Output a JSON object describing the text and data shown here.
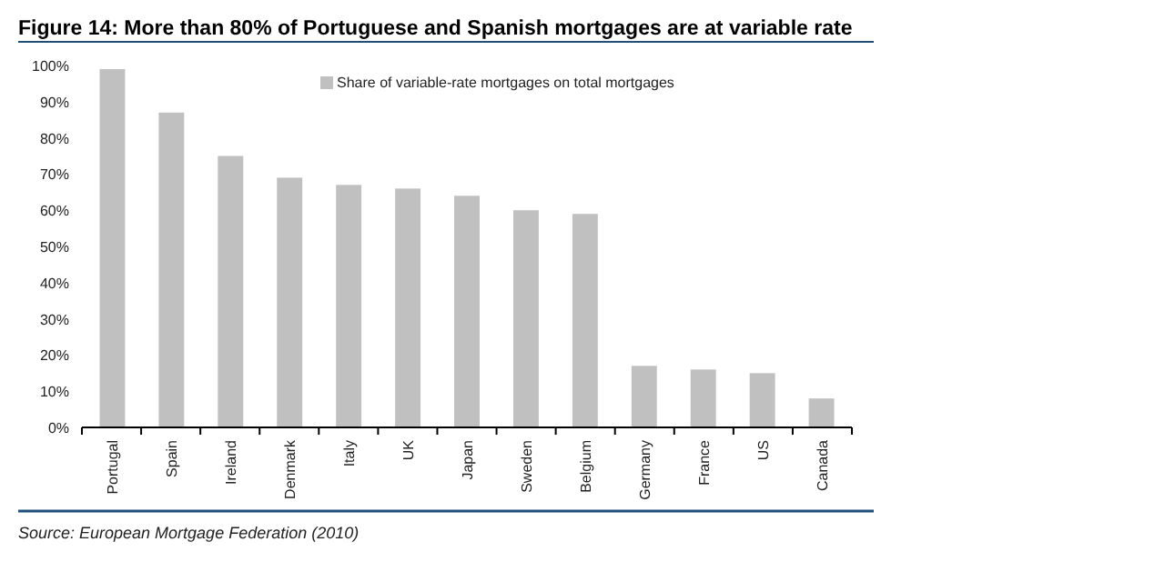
{
  "chart_data": {
    "type": "bar",
    "title": "Figure 14: More than 80% of Portuguese and Spanish mortgages are at variable rate",
    "categories": [
      "Portugal",
      "Spain",
      "Ireland",
      "Denmark",
      "Italy",
      "UK",
      "Japan",
      "Sweden",
      "Belgium",
      "Germany",
      "France",
      "US",
      "Canada"
    ],
    "series": [
      {
        "name": "Share of variable-rate mortgages on total mortgages",
        "color": "#c0c0c0",
        "values": [
          99,
          87,
          75,
          69,
          67,
          66,
          64,
          60,
          59,
          17,
          16,
          15,
          8
        ]
      }
    ],
    "ylim": [
      0,
      100
    ],
    "yticks": [
      {
        "value": 0,
        "label": "0%"
      },
      {
        "value": 10,
        "label": "10%"
      },
      {
        "value": 20,
        "label": "20%"
      },
      {
        "value": 30,
        "label": "30%"
      },
      {
        "value": 40,
        "label": "40%"
      },
      {
        "value": 50,
        "label": "50%"
      },
      {
        "value": 60,
        "label": "60%"
      },
      {
        "value": 70,
        "label": "70%"
      },
      {
        "value": 80,
        "label": "80%"
      },
      {
        "value": 90,
        "label": "90%"
      },
      {
        "value": 100,
        "label": "100%"
      }
    ],
    "legend": "top",
    "annotations": [
      "Source: European Mortgage Federation (2010)"
    ]
  }
}
